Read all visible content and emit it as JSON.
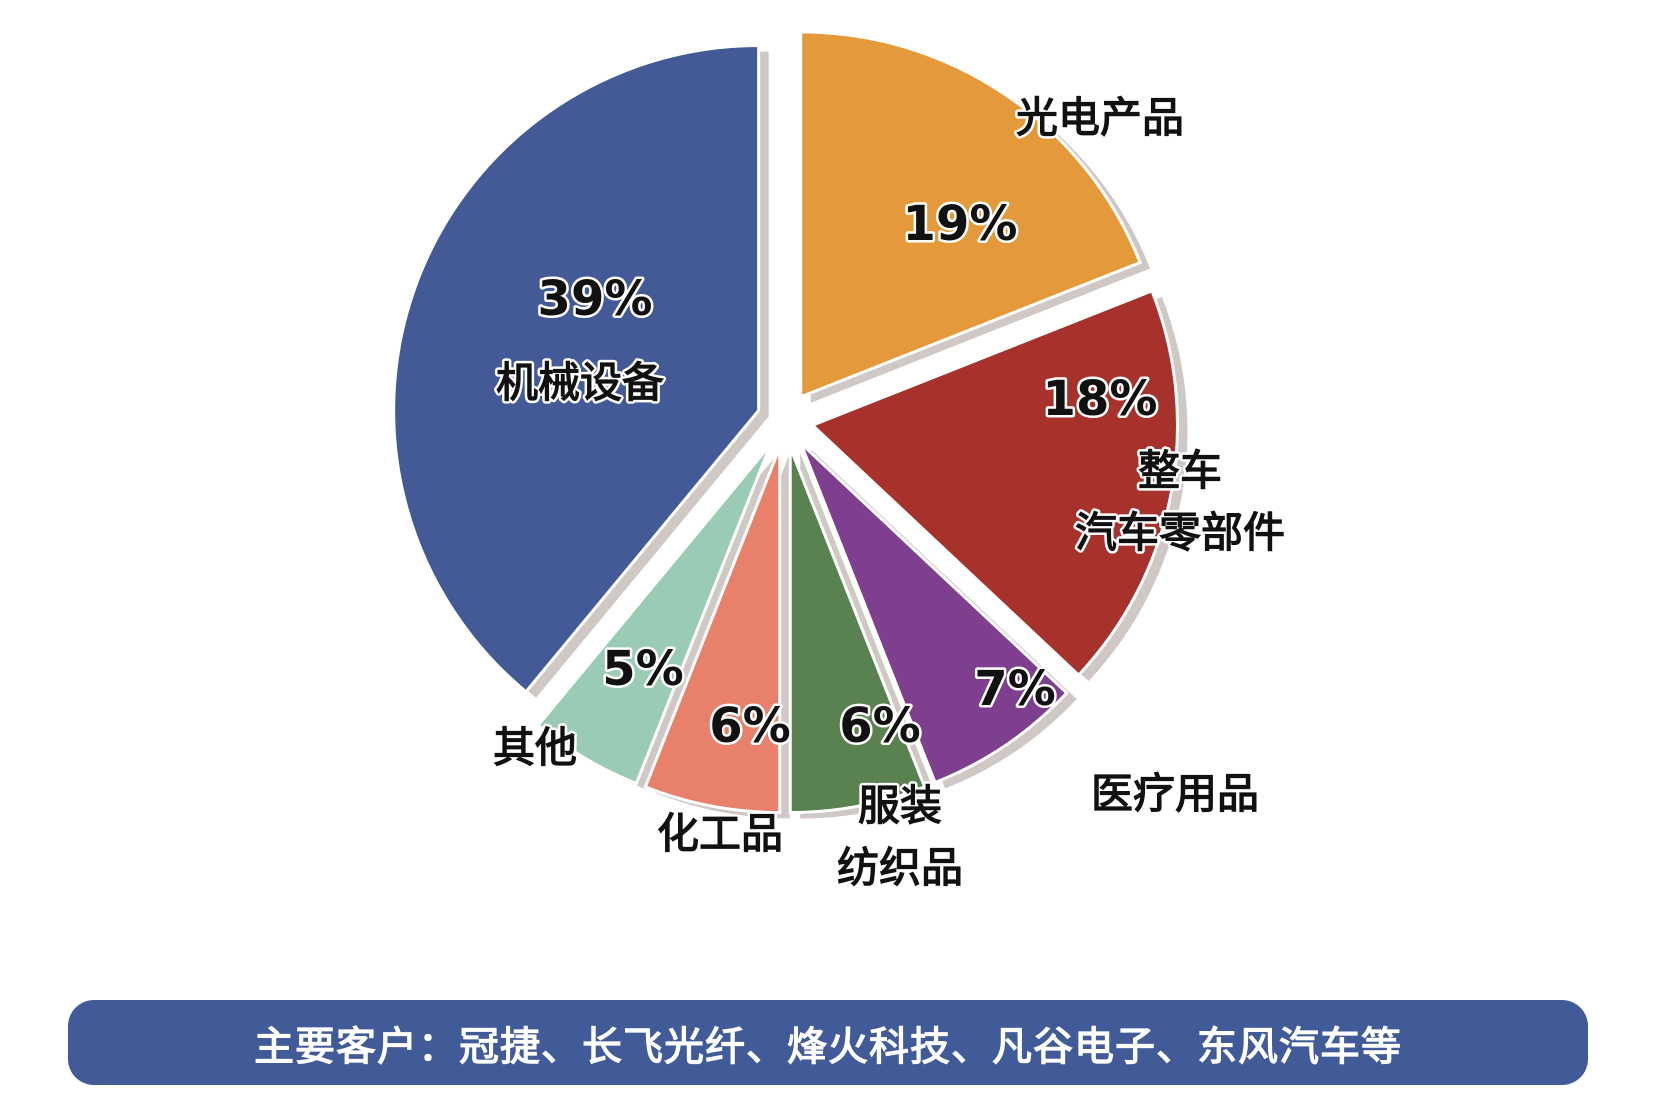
{
  "chart_data": {
    "type": "pie",
    "title": "",
    "slices": [
      {
        "label": "光电产品",
        "label_lines": [
          "光电产品"
        ],
        "value": 19,
        "value_label": "19%",
        "color": "#E49A3A"
      },
      {
        "label": "整车 汽车零部件",
        "label_lines": [
          "整车",
          "汽车零部件"
        ],
        "value": 18,
        "value_label": "18%",
        "color": "#A6322B"
      },
      {
        "label": "医疗用品",
        "label_lines": [
          "医疗用品"
        ],
        "value": 7,
        "value_label": "7%",
        "color": "#7E3F8E"
      },
      {
        "label": "服装 纺织品",
        "label_lines": [
          "服装",
          "纺织品"
        ],
        "value": 6,
        "value_label": "6%",
        "color": "#5A8150"
      },
      {
        "label": "化工品",
        "label_lines": [
          "化工品"
        ],
        "value": 6,
        "value_label": "6%",
        "color": "#E8806C"
      },
      {
        "label": "其他",
        "label_lines": [
          "其他"
        ],
        "value": 5,
        "value_label": "5%",
        "color": "#9ACBB4"
      },
      {
        "label": "机械设备",
        "label_lines": [
          "机械设备"
        ],
        "value": 39,
        "value_label": "39%",
        "color": "#445A97"
      }
    ],
    "shadow_color": "#CFC8C4",
    "exploded": true
  },
  "footer": {
    "text": "主要客户：冠捷、长飞光纤、烽火科技、凡谷电子、东风汽车等",
    "background": "#415A98"
  }
}
